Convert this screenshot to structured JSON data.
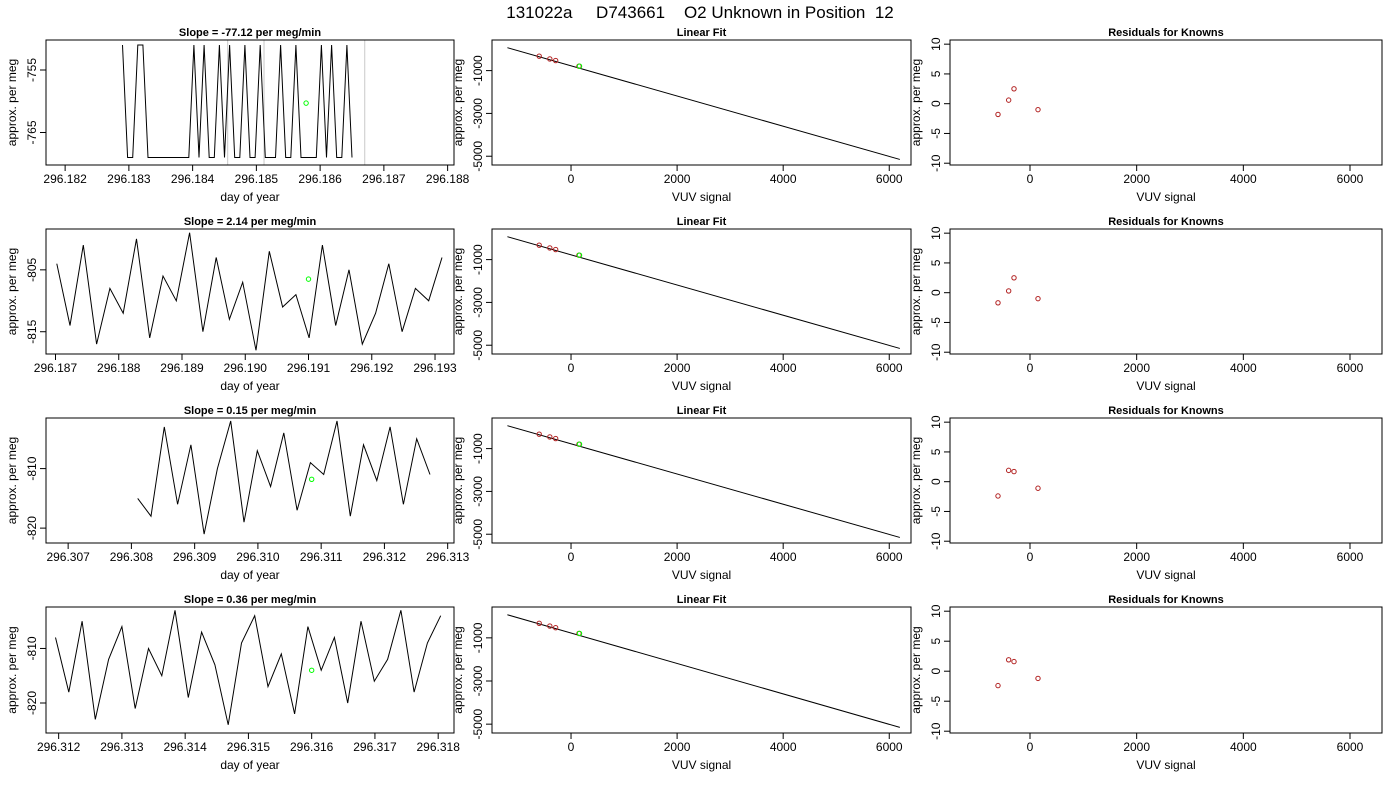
{
  "page_title": "131022a     D743661    O2 Unknown in Position  12",
  "chart_data": [
    {
      "type": "line",
      "title": "Slope =  -77.12  per meg/min",
      "xlabel": "day of year",
      "ylabel": "approx. per meg",
      "xlim": [
        296.1817,
        296.1881
      ],
      "ylim": [
        -770.2,
        -750.2
      ],
      "xticks": [
        296.182,
        296.183,
        296.184,
        296.185,
        296.186,
        296.187,
        296.188
      ],
      "xtick_labels": [
        "296.182",
        "296.183",
        "296.184",
        "296.185",
        "296.186",
        "296.187",
        "296.188"
      ],
      "yticks": [
        -755,
        -765
      ],
      "ytick_labels": [
        "-755",
        "-765"
      ],
      "series": [
        {
          "role": "trace",
          "color": "#000000",
          "x": [
            296.1829,
            296.18298,
            296.18306,
            296.18314,
            296.18322,
            296.1833,
            296.18338,
            296.18346,
            296.18354,
            296.18362,
            296.1837,
            296.18378,
            296.18386,
            296.18394,
            296.18402,
            296.1841,
            296.18418,
            296.18426,
            296.18434,
            296.18442,
            296.1845,
            296.18458,
            296.18466,
            296.18474,
            296.18482,
            296.1849,
            296.18498,
            296.18506,
            296.18514,
            296.18522,
            296.1853,
            296.18538,
            296.18546,
            296.18554,
            296.18562,
            296.1857,
            296.18578,
            296.18586,
            296.18594,
            296.18602,
            296.1861,
            296.18618,
            296.18626,
            296.18634,
            296.18642,
            296.1865
          ],
          "y": [
            -751,
            -769,
            -769,
            -751,
            -751,
            -769,
            -769,
            -769,
            -769,
            -769,
            -769,
            -769,
            -769,
            -769,
            -751,
            -769,
            -751,
            -769,
            -769,
            -751,
            -769,
            -751,
            -769,
            -769,
            -751,
            -769,
            -769,
            -751,
            -769,
            -769,
            -769,
            -751,
            -769,
            -769,
            -751,
            -769,
            -769,
            -769,
            -769,
            -751,
            -769,
            -751,
            -769,
            -769,
            -751,
            -769
          ]
        }
      ],
      "guides": [
        296.18455,
        296.18512,
        296.1867
      ],
      "unknown_point": {
        "x": 296.18578,
        "y": -760.3,
        "color": "#00ff00"
      }
    },
    {
      "type": "scatter",
      "title": "Linear Fit",
      "xlabel": "VUV signal",
      "ylabel": "approx. per meg",
      "xlim": [
        -1490,
        6410
      ],
      "ylim": [
        -5410,
        430
      ],
      "xticks": [
        0,
        2000,
        4000,
        6000
      ],
      "xtick_labels": [
        "0",
        "2000",
        "4000",
        "6000"
      ],
      "yticks": [
        -1000,
        -3000,
        -5000
      ],
      "ytick_labels": [
        "-1000",
        "-3000",
        "-5000"
      ],
      "fit_line": {
        "x": [
          -1200,
          6200
        ],
        "y": [
          70,
          -5150
        ]
      },
      "knowns": {
        "color": "#b22222",
        "x": [
          -600,
          -400,
          -290,
          150
        ],
        "y": [
          -325,
          -455,
          -530,
          -795
        ]
      },
      "unknown_point": {
        "x": 160,
        "y": -795,
        "color": "#00ff00"
      }
    },
    {
      "type": "scatter",
      "title": "Residuals for Knowns",
      "xlabel": "VUV signal",
      "ylabel": "approx. per meg",
      "xlim": [
        -1500,
        6600
      ],
      "ylim": [
        -10.3,
        10.7
      ],
      "xticks": [
        0,
        2000,
        4000,
        6000
      ],
      "xtick_labels": [
        "0",
        "2000",
        "4000",
        "6000"
      ],
      "yticks": [
        -10,
        -5,
        0,
        5,
        10
      ],
      "ytick_labels": [
        "-10",
        "-5",
        "0",
        "5",
        "10"
      ],
      "points": {
        "color": "#b22222",
        "x": [
          -600,
          -400,
          -300,
          150
        ],
        "y": [
          -1.8,
          0.6,
          2.5,
          -1.0
        ]
      }
    },
    {
      "type": "line",
      "title": "Slope =  2.14  per meg/min",
      "xlabel": "day of year",
      "ylabel": "approx. per meg",
      "xlim": [
        296.18685,
        296.1933
      ],
      "ylim": [
        -818.6,
        -798.4
      ],
      "xticks": [
        296.187,
        296.188,
        296.189,
        296.19,
        296.191,
        296.192,
        296.193
      ],
      "xtick_labels": [
        "296.187",
        "296.188",
        "296.189",
        "296.190",
        "296.191",
        "296.192",
        "296.193"
      ],
      "yticks": [
        -805,
        -815
      ],
      "ytick_labels": [
        "-805",
        "-815"
      ],
      "series": [
        {
          "role": "trace",
          "color": "#000000",
          "x": [
            296.18702,
            296.18723,
            296.18744,
            296.18765,
            296.18786,
            296.18807,
            296.18828,
            296.18849,
            296.1887,
            296.18891,
            296.18912,
            296.18933,
            296.18954,
            296.18975,
            296.18996,
            296.19017,
            296.19038,
            296.19059,
            296.1908,
            296.19101,
            296.19122,
            296.19143,
            296.19164,
            296.19185,
            296.19206,
            296.19227,
            296.19248,
            296.19269,
            296.1929,
            296.19311
          ],
          "y": [
            -804,
            -814,
            -801,
            -817,
            -808,
            -812,
            -800,
            -816,
            -806,
            -810,
            -799,
            -815,
            -803,
            -813,
            -807,
            -818,
            -802,
            -811,
            -809,
            -816,
            -801,
            -814,
            -805,
            -817,
            -812,
            -804,
            -815,
            -808,
            -810,
            -803
          ]
        }
      ],
      "unknown_point": {
        "x": 296.191,
        "y": -806.5,
        "color": "#00ff00"
      }
    },
    {
      "type": "scatter",
      "title": "Linear Fit",
      "xlabel": "VUV signal",
      "ylabel": "approx. per meg",
      "xlim": [
        -1490,
        6410
      ],
      "ylim": [
        -5410,
        430
      ],
      "xticks": [
        0,
        2000,
        4000,
        6000
      ],
      "xtick_labels": [
        "0",
        "2000",
        "4000",
        "6000"
      ],
      "yticks": [
        -1000,
        -3000,
        -5000
      ],
      "ytick_labels": [
        "-1000",
        "-3000",
        "-5000"
      ],
      "fit_line": {
        "x": [
          -1200,
          6200
        ],
        "y": [
          70,
          -5150
        ]
      },
      "knowns": {
        "color": "#b22222",
        "x": [
          -600,
          -400,
          -290,
          150
        ],
        "y": [
          -325,
          -455,
          -530,
          -795
        ]
      },
      "unknown_point": {
        "x": 160,
        "y": -795,
        "color": "#00ff00"
      }
    },
    {
      "type": "scatter",
      "title": "Residuals for Knowns",
      "xlabel": "VUV signal",
      "ylabel": "approx. per meg",
      "xlim": [
        -1500,
        6600
      ],
      "ylim": [
        -10.3,
        10.7
      ],
      "xticks": [
        0,
        2000,
        4000,
        6000
      ],
      "xtick_labels": [
        "0",
        "2000",
        "4000",
        "6000"
      ],
      "yticks": [
        -10,
        -5,
        0,
        5,
        10
      ],
      "ytick_labels": [
        "-10",
        "-5",
        "0",
        "5",
        "10"
      ],
      "points": {
        "color": "#b22222",
        "x": [
          -600,
          -400,
          -300,
          150
        ],
        "y": [
          -1.7,
          0.3,
          2.5,
          -1.0
        ]
      }
    },
    {
      "type": "line",
      "title": "Slope =  0.15  per meg/min",
      "xlabel": "day of year",
      "ylabel": "approx. per meg",
      "xlim": [
        296.30665,
        296.3131
      ],
      "ylim": [
        -822.5,
        -801.5
      ],
      "xticks": [
        296.307,
        296.308,
        296.309,
        296.31,
        296.311,
        296.312,
        296.313
      ],
      "xtick_labels": [
        "296.307",
        "296.308",
        "296.309",
        "296.310",
        "296.311",
        "296.312",
        "296.313"
      ],
      "yticks": [
        -810,
        -820
      ],
      "ytick_labels": [
        "-810",
        "-820"
      ],
      "series": [
        {
          "role": "trace",
          "color": "#000000",
          "x": [
            296.3081,
            296.30831,
            296.30852,
            296.30873,
            296.30894,
            296.30915,
            296.30936,
            296.30957,
            296.30978,
            296.30999,
            296.3102,
            296.31041,
            296.31062,
            296.31083,
            296.31104,
            296.31125,
            296.31146,
            296.31167,
            296.31188,
            296.31209,
            296.3123,
            296.31251,
            296.31272
          ],
          "y": [
            -815,
            -818,
            -803,
            -816,
            -806,
            -821,
            -810,
            -802,
            -819,
            -807,
            -813,
            -804,
            -817,
            -809,
            -811,
            -802,
            -818,
            -806,
            -812,
            -803,
            -816,
            -805,
            -811
          ]
        }
      ],
      "unknown_point": {
        "x": 296.31085,
        "y": -811.8,
        "color": "#00ff00"
      }
    },
    {
      "type": "scatter",
      "title": "Linear Fit",
      "xlabel": "VUV signal",
      "ylabel": "approx. per meg",
      "xlim": [
        -1490,
        6410
      ],
      "ylim": [
        -5410,
        430
      ],
      "xticks": [
        0,
        2000,
        4000,
        6000
      ],
      "xtick_labels": [
        "0",
        "2000",
        "4000",
        "6000"
      ],
      "yticks": [
        -1000,
        -3000,
        -5000
      ],
      "ytick_labels": [
        "-1000",
        "-3000",
        "-5000"
      ],
      "fit_line": {
        "x": [
          -1200,
          6200
        ],
        "y": [
          70,
          -5150
        ]
      },
      "knowns": {
        "color": "#b22222",
        "x": [
          -600,
          -400,
          -290,
          150
        ],
        "y": [
          -325,
          -455,
          -530,
          -795
        ]
      },
      "unknown_point": {
        "x": 160,
        "y": -795,
        "color": "#00ff00"
      }
    },
    {
      "type": "scatter",
      "title": "Residuals for Knowns",
      "xlabel": "VUV signal",
      "ylabel": "approx. per meg",
      "xlim": [
        -1500,
        6600
      ],
      "ylim": [
        -10.3,
        10.7
      ],
      "xticks": [
        0,
        2000,
        4000,
        6000
      ],
      "xtick_labels": [
        "0",
        "2000",
        "4000",
        "6000"
      ],
      "yticks": [
        -10,
        -5,
        0,
        5,
        10
      ],
      "ytick_labels": [
        "-10",
        "-5",
        "0",
        "5",
        "10"
      ],
      "points": {
        "color": "#b22222",
        "x": [
          -600,
          -400,
          -300,
          150
        ],
        "y": [
          -2.4,
          1.9,
          1.7,
          -1.1
        ]
      }
    },
    {
      "type": "line",
      "title": "Slope =  0.36  per meg/min",
      "xlabel": "day of year",
      "ylabel": "approx. per meg",
      "xlim": [
        296.3118,
        296.31825
      ],
      "ylim": [
        -825.5,
        -802.4
      ],
      "xticks": [
        296.312,
        296.313,
        296.314,
        296.315,
        296.316,
        296.317,
        296.318
      ],
      "xtick_labels": [
        "296.312",
        "296.313",
        "296.314",
        "296.315",
        "296.316",
        "296.317",
        "296.318"
      ],
      "yticks": [
        -810,
        -820
      ],
      "ytick_labels": [
        "-810",
        "-820"
      ],
      "series": [
        {
          "role": "trace",
          "color": "#000000",
          "x": [
            296.31195,
            296.31216,
            296.31237,
            296.31258,
            296.31279,
            296.313,
            296.31321,
            296.31342,
            296.31363,
            296.31384,
            296.31405,
            296.31426,
            296.31447,
            296.31468,
            296.31489,
            296.3151,
            296.31531,
            296.31552,
            296.31573,
            296.31594,
            296.31615,
            296.31636,
            296.31657,
            296.31678,
            296.31699,
            296.3172,
            296.31741,
            296.31762,
            296.31783,
            296.31804
          ],
          "y": [
            -808,
            -818,
            -805,
            -823,
            -812,
            -806,
            -821,
            -810,
            -815,
            -803,
            -819,
            -807,
            -813,
            -824,
            -809,
            -804,
            -817,
            -811,
            -822,
            -806,
            -814,
            -808,
            -820,
            -805,
            -816,
            -812,
            -803,
            -818,
            -809,
            -804
          ]
        }
      ],
      "unknown_point": {
        "x": 296.316,
        "y": -814,
        "color": "#00ff00"
      }
    },
    {
      "type": "scatter",
      "title": "Linear Fit",
      "xlabel": "VUV signal",
      "ylabel": "approx. per meg",
      "xlim": [
        -1490,
        6410
      ],
      "ylim": [
        -5410,
        430
      ],
      "xticks": [
        0,
        2000,
        4000,
        6000
      ],
      "xtick_labels": [
        "0",
        "2000",
        "4000",
        "6000"
      ],
      "yticks": [
        -1000,
        -3000,
        -5000
      ],
      "ytick_labels": [
        "-1000",
        "-3000",
        "-5000"
      ],
      "fit_line": {
        "x": [
          -1200,
          6200
        ],
        "y": [
          70,
          -5150
        ]
      },
      "knowns": {
        "color": "#b22222",
        "x": [
          -600,
          -400,
          -290,
          150
        ],
        "y": [
          -325,
          -455,
          -530,
          -795
        ]
      },
      "unknown_point": {
        "x": 160,
        "y": -795,
        "color": "#00ff00"
      }
    },
    {
      "type": "scatter",
      "title": "Residuals for Knowns",
      "xlabel": "VUV signal",
      "ylabel": "approx. per meg",
      "xlim": [
        -1500,
        6600
      ],
      "ylim": [
        -10.3,
        10.7
      ],
      "xticks": [
        0,
        2000,
        4000,
        6000
      ],
      "xtick_labels": [
        "0",
        "2000",
        "4000",
        "6000"
      ],
      "yticks": [
        -10,
        -5,
        0,
        5,
        10
      ],
      "points": {
        "color": "#b22222",
        "x": [
          -600,
          -400,
          -300,
          150
        ],
        "y": [
          -2.4,
          1.9,
          1.6,
          -1.2
        ]
      },
      "ytick_labels": [
        "-10",
        "-5",
        "0",
        "5",
        "10"
      ]
    }
  ]
}
